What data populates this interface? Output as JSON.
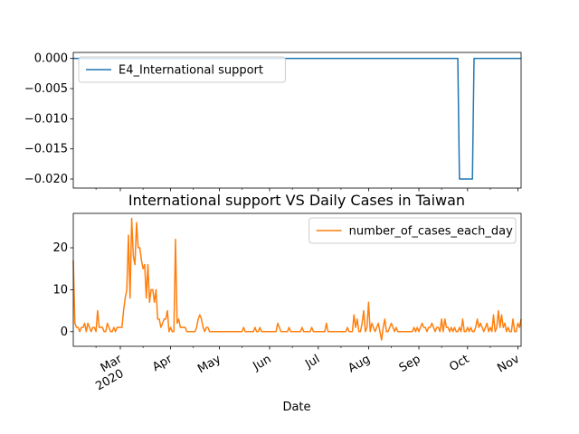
{
  "chart_data": [
    {
      "type": "line",
      "title": "",
      "xlabel": "",
      "ylabel": "",
      "ylim": [
        -0.0215,
        0.001
      ],
      "yticks": [
        0.0,
        -0.005,
        -0.01,
        -0.015,
        -0.02
      ],
      "ytick_labels": [
        "0.000",
        "−0.005",
        "−0.010",
        "−0.015",
        "−0.020"
      ],
      "legend": {
        "placement": "top-left"
      },
      "series": [
        {
          "name": "E4_International support",
          "color": "#1f77b4",
          "points": [
            [
              "2020-02-01",
              0
            ],
            [
              "2020-09-25",
              0
            ],
            [
              "2020-09-26",
              -0.02
            ],
            [
              "2020-10-04",
              -0.02
            ],
            [
              "2020-10-05",
              0
            ],
            [
              "2020-11-03",
              0
            ]
          ]
        }
      ]
    },
    {
      "type": "line",
      "title": "International support VS Daily Cases in Taiwan",
      "xlabel": "Date",
      "ylabel": "",
      "ylim": [
        -3.5,
        28.2
      ],
      "yticks": [
        0,
        10,
        20
      ],
      "ytick_labels": [
        "0",
        "10",
        "20"
      ],
      "legend": {
        "placement": "top-right"
      },
      "series": [
        {
          "name": "number_of_cases_each_day",
          "color": "#ff7f0e",
          "points": [
            [
              "2020-02-01",
              17
            ],
            [
              "2020-02-02",
              2
            ],
            [
              "2020-02-03",
              1
            ],
            [
              "2020-02-04",
              1
            ],
            [
              "2020-02-05",
              0
            ],
            [
              "2020-02-06",
              1
            ],
            [
              "2020-02-07",
              1
            ],
            [
              "2020-02-08",
              2
            ],
            [
              "2020-02-09",
              0
            ],
            [
              "2020-02-10",
              2
            ],
            [
              "2020-02-11",
              1
            ],
            [
              "2020-02-12",
              0
            ],
            [
              "2020-02-13",
              1
            ],
            [
              "2020-02-14",
              1
            ],
            [
              "2020-02-15",
              0
            ],
            [
              "2020-02-16",
              5
            ],
            [
              "2020-02-17",
              1
            ],
            [
              "2020-02-18",
              1
            ],
            [
              "2020-02-19",
              1
            ],
            [
              "2020-02-20",
              0
            ],
            [
              "2020-02-21",
              0
            ],
            [
              "2020-02-22",
              2
            ],
            [
              "2020-02-23",
              1
            ],
            [
              "2020-02-24",
              0
            ],
            [
              "2020-02-25",
              0
            ],
            [
              "2020-02-26",
              1
            ],
            [
              "2020-02-27",
              0
            ],
            [
              "2020-02-28",
              1
            ],
            [
              "2020-02-29",
              1
            ],
            [
              "2020-03-01",
              1
            ],
            [
              "2020-03-02",
              1
            ],
            [
              "2020-03-03",
              5
            ],
            [
              "2020-03-04",
              8
            ],
            [
              "2020-03-05",
              10
            ],
            [
              "2020-03-06",
              23
            ],
            [
              "2020-03-07",
              8
            ],
            [
              "2020-03-08",
              27
            ],
            [
              "2020-03-09",
              18
            ],
            [
              "2020-03-10",
              16
            ],
            [
              "2020-03-11",
              26
            ],
            [
              "2020-03-12",
              20
            ],
            [
              "2020-03-13",
              20
            ],
            [
              "2020-03-14",
              17
            ],
            [
              "2020-03-15",
              15
            ],
            [
              "2020-03-16",
              16
            ],
            [
              "2020-03-17",
              8
            ],
            [
              "2020-03-18",
              16
            ],
            [
              "2020-03-19",
              7
            ],
            [
              "2020-03-20",
              10
            ],
            [
              "2020-03-21",
              10
            ],
            [
              "2020-03-22",
              7
            ],
            [
              "2020-03-23",
              10
            ],
            [
              "2020-03-24",
              3
            ],
            [
              "2020-03-25",
              3
            ],
            [
              "2020-03-26",
              1
            ],
            [
              "2020-03-27",
              2
            ],
            [
              "2020-03-28",
              3
            ],
            [
              "2020-03-29",
              3
            ],
            [
              "2020-03-30",
              5
            ],
            [
              "2020-03-31",
              0
            ],
            [
              "2020-04-01",
              1
            ],
            [
              "2020-04-02",
              0
            ],
            [
              "2020-04-03",
              0
            ],
            [
              "2020-04-04",
              22
            ],
            [
              "2020-04-05",
              2
            ],
            [
              "2020-04-06",
              3
            ],
            [
              "2020-04-07",
              1
            ],
            [
              "2020-04-08",
              1
            ],
            [
              "2020-04-09",
              1
            ],
            [
              "2020-04-10",
              1
            ],
            [
              "2020-04-11",
              0
            ],
            [
              "2020-04-12",
              0
            ],
            [
              "2020-04-13",
              0
            ],
            [
              "2020-04-14",
              0
            ],
            [
              "2020-04-15",
              0
            ],
            [
              "2020-04-16",
              0
            ],
            [
              "2020-04-17",
              1
            ],
            [
              "2020-04-18",
              3
            ],
            [
              "2020-04-19",
              4
            ],
            [
              "2020-04-20",
              3
            ],
            [
              "2020-04-21",
              1
            ],
            [
              "2020-04-22",
              0
            ],
            [
              "2020-04-23",
              1
            ],
            [
              "2020-04-24",
              1
            ],
            [
              "2020-04-25",
              0
            ],
            [
              "2020-05-01",
              0
            ],
            [
              "2020-05-15",
              0
            ],
            [
              "2020-05-16",
              1
            ],
            [
              "2020-05-17",
              0
            ],
            [
              "2020-05-22",
              0
            ],
            [
              "2020-05-23",
              1
            ],
            [
              "2020-05-24",
              0
            ],
            [
              "2020-05-25",
              0
            ],
            [
              "2020-05-26",
              1
            ],
            [
              "2020-05-27",
              0
            ],
            [
              "2020-06-05",
              0
            ],
            [
              "2020-06-06",
              2
            ],
            [
              "2020-06-07",
              1
            ],
            [
              "2020-06-08",
              0
            ],
            [
              "2020-06-12",
              0
            ],
            [
              "2020-06-13",
              1
            ],
            [
              "2020-06-14",
              0
            ],
            [
              "2020-06-20",
              0
            ],
            [
              "2020-06-21",
              1
            ],
            [
              "2020-06-22",
              0
            ],
            [
              "2020-06-26",
              0
            ],
            [
              "2020-06-27",
              1
            ],
            [
              "2020-06-28",
              0
            ],
            [
              "2020-07-05",
              0
            ],
            [
              "2020-07-06",
              2
            ],
            [
              "2020-07-07",
              0
            ],
            [
              "2020-07-18",
              0
            ],
            [
              "2020-07-19",
              1
            ],
            [
              "2020-07-20",
              0
            ],
            [
              "2020-07-22",
              0
            ],
            [
              "2020-07-23",
              4
            ],
            [
              "2020-07-24",
              1
            ],
            [
              "2020-07-25",
              3
            ],
            [
              "2020-07-26",
              0
            ],
            [
              "2020-07-27",
              0
            ],
            [
              "2020-07-28",
              2
            ],
            [
              "2020-07-29",
              5
            ],
            [
              "2020-07-30",
              0
            ],
            [
              "2020-07-31",
              1
            ],
            [
              "2020-08-01",
              7
            ],
            [
              "2020-08-02",
              0
            ],
            [
              "2020-08-03",
              2
            ],
            [
              "2020-08-04",
              1
            ],
            [
              "2020-08-05",
              0
            ],
            [
              "2020-08-06",
              1
            ],
            [
              "2020-08-07",
              2
            ],
            [
              "2020-08-08",
              0
            ],
            [
              "2020-08-09",
              -2
            ],
            [
              "2020-08-10",
              1
            ],
            [
              "2020-08-11",
              3
            ],
            [
              "2020-08-12",
              0
            ],
            [
              "2020-08-13",
              0
            ],
            [
              "2020-08-14",
              1
            ],
            [
              "2020-08-15",
              2
            ],
            [
              "2020-08-16",
              1
            ],
            [
              "2020-08-17",
              0
            ],
            [
              "2020-08-18",
              1
            ],
            [
              "2020-08-19",
              0
            ],
            [
              "2020-08-20",
              0
            ],
            [
              "2020-08-28",
              0
            ],
            [
              "2020-08-29",
              1
            ],
            [
              "2020-08-30",
              0
            ],
            [
              "2020-08-31",
              1
            ],
            [
              "2020-09-01",
              0
            ],
            [
              "2020-09-02",
              1
            ],
            [
              "2020-09-03",
              2
            ],
            [
              "2020-09-04",
              1
            ],
            [
              "2020-09-05",
              1
            ],
            [
              "2020-09-06",
              0
            ],
            [
              "2020-09-07",
              1
            ],
            [
              "2020-09-08",
              1
            ],
            [
              "2020-09-09",
              2
            ],
            [
              "2020-09-10",
              1
            ],
            [
              "2020-09-11",
              0
            ],
            [
              "2020-09-12",
              1
            ],
            [
              "2020-09-13",
              1
            ],
            [
              "2020-09-14",
              0
            ],
            [
              "2020-09-15",
              3
            ],
            [
              "2020-09-16",
              0
            ],
            [
              "2020-09-17",
              3
            ],
            [
              "2020-09-18",
              1
            ],
            [
              "2020-09-19",
              1
            ],
            [
              "2020-09-20",
              0
            ],
            [
              "2020-09-21",
              1
            ],
            [
              "2020-09-22",
              0
            ],
            [
              "2020-09-23",
              1
            ],
            [
              "2020-09-24",
              0
            ],
            [
              "2020-09-25",
              0
            ],
            [
              "2020-09-26",
              1
            ],
            [
              "2020-09-27",
              0
            ],
            [
              "2020-09-28",
              3
            ],
            [
              "2020-09-29",
              0
            ],
            [
              "2020-09-30",
              0
            ],
            [
              "2020-10-01",
              1
            ],
            [
              "2020-10-02",
              0
            ],
            [
              "2020-10-03",
              1
            ],
            [
              "2020-10-04",
              0
            ],
            [
              "2020-10-05",
              0
            ],
            [
              "2020-10-06",
              1
            ],
            [
              "2020-10-07",
              3
            ],
            [
              "2020-10-08",
              1
            ],
            [
              "2020-10-09",
              2
            ],
            [
              "2020-10-10",
              1
            ],
            [
              "2020-10-11",
              0
            ],
            [
              "2020-10-12",
              1
            ],
            [
              "2020-10-13",
              2
            ],
            [
              "2020-10-14",
              0
            ],
            [
              "2020-10-15",
              1
            ],
            [
              "2020-10-16",
              0
            ],
            [
              "2020-10-17",
              4
            ],
            [
              "2020-10-18",
              0
            ],
            [
              "2020-10-19",
              1
            ],
            [
              "2020-10-20",
              5
            ],
            [
              "2020-10-21",
              1
            ],
            [
              "2020-10-22",
              4
            ],
            [
              "2020-10-23",
              1
            ],
            [
              "2020-10-24",
              2
            ],
            [
              "2020-10-25",
              0
            ],
            [
              "2020-10-26",
              1
            ],
            [
              "2020-10-27",
              0
            ],
            [
              "2020-10-28",
              0
            ],
            [
              "2020-10-29",
              3
            ],
            [
              "2020-10-30",
              0
            ],
            [
              "2020-10-31",
              0
            ],
            [
              "2020-11-01",
              2
            ],
            [
              "2020-11-02",
              1
            ],
            [
              "2020-11-03",
              3
            ]
          ]
        }
      ]
    }
  ],
  "shared_x": {
    "xlim": [
      "2020-02-01",
      "2020-11-03"
    ],
    "ticks": [
      {
        "date": "2020-03-01",
        "label": "Mar",
        "year": "2020"
      },
      {
        "date": "2020-04-01",
        "label": "Apr"
      },
      {
        "date": "2020-05-01",
        "label": "May"
      },
      {
        "date": "2020-06-01",
        "label": "Jun"
      },
      {
        "date": "2020-07-01",
        "label": "Jul"
      },
      {
        "date": "2020-08-01",
        "label": "Aug"
      },
      {
        "date": "2020-09-01",
        "label": "Sep"
      },
      {
        "date": "2020-10-01",
        "label": "Oct"
      },
      {
        "date": "2020-11-01",
        "label": "Nov"
      }
    ]
  }
}
